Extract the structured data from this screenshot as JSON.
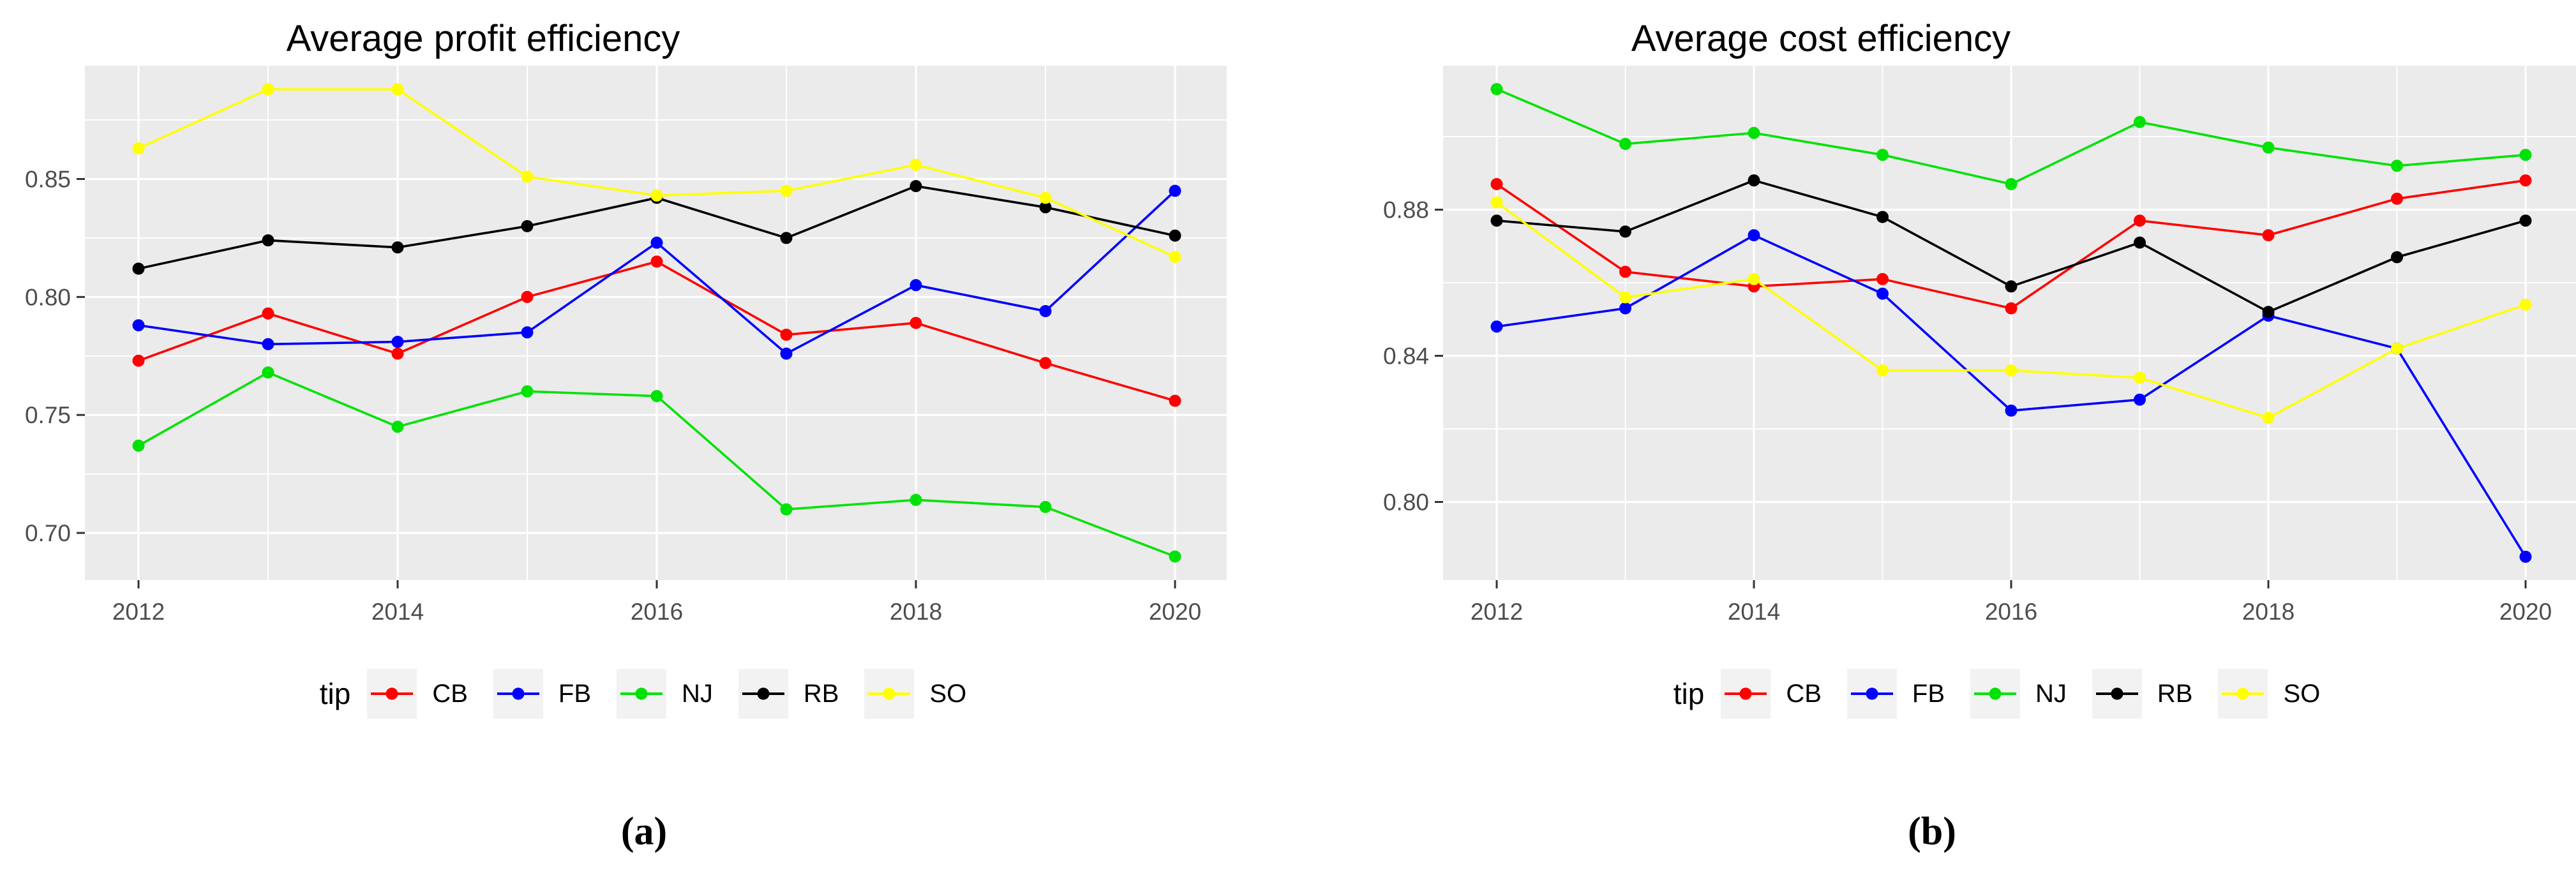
{
  "figure": {
    "background": "#ffffff",
    "captions": {
      "a": "(a)",
      "b": "(b)"
    }
  },
  "theme": {
    "panel_fill": "#EBEBEB",
    "grid_color": "#FFFFFF",
    "axis_text_color": "#4D4D4D",
    "tick_color": "#333333",
    "title_color": "#000000"
  },
  "legend": {
    "title": "tip",
    "position": "bottom",
    "key_fill": "#F2F2F2",
    "items": [
      {
        "label": "CB",
        "color": "#FF0000"
      },
      {
        "label": "FB",
        "color": "#0000FF"
      },
      {
        "label": "NJ",
        "color": "#00E205"
      },
      {
        "label": "RB",
        "color": "#000000"
      },
      {
        "label": "SO",
        "color": "#FFFF00"
      }
    ]
  },
  "chart_data": [
    {
      "type": "line",
      "title": "Average profit efficiency",
      "xlabel": "",
      "ylabel": "",
      "x": [
        2012,
        2013,
        2014,
        2015,
        2016,
        2017,
        2018,
        2019,
        2020
      ],
      "x_ticks_major": [
        2012,
        2014,
        2016,
        2018,
        2020
      ],
      "x_tick_labels": [
        "2012",
        "2014",
        "2016",
        "2018",
        "2020"
      ],
      "x_minor": [
        2013,
        2015,
        2017,
        2019
      ],
      "ylim": [
        0.68,
        0.898
      ],
      "y_ticks_major": [
        {
          "value": 0.85,
          "label": "0.85"
        },
        {
          "value": 0.8,
          "label": "0.80"
        },
        {
          "value": 0.75,
          "label": "0.75"
        },
        {
          "value": 0.7,
          "label": "0.70"
        }
      ],
      "y_minor": [
        0.875,
        0.825,
        0.775,
        0.725
      ],
      "grid": true,
      "legend_position": "bottom",
      "series": [
        {
          "name": "CB",
          "color": "#FF0000",
          "values": [
            0.773,
            0.793,
            0.776,
            0.8,
            0.815,
            0.784,
            0.789,
            0.772,
            0.756
          ]
        },
        {
          "name": "FB",
          "color": "#0000FF",
          "values": [
            0.788,
            0.78,
            0.781,
            0.785,
            0.823,
            0.776,
            0.805,
            0.794,
            0.845
          ]
        },
        {
          "name": "NJ",
          "color": "#00E205",
          "values": [
            0.737,
            0.768,
            0.745,
            0.76,
            0.758,
            0.71,
            0.714,
            0.711,
            0.69
          ]
        },
        {
          "name": "RB",
          "color": "#000000",
          "values": [
            0.812,
            0.824,
            0.821,
            0.83,
            0.842,
            0.825,
            0.847,
            0.838,
            0.826
          ]
        },
        {
          "name": "SO",
          "color": "#FFFF00",
          "values": [
            0.863,
            0.888,
            0.888,
            0.851,
            0.843,
            0.845,
            0.856,
            0.842,
            0.817
          ]
        }
      ]
    },
    {
      "type": "line",
      "title": "Average cost efficiency",
      "xlabel": "",
      "ylabel": "",
      "x": [
        2012,
        2013,
        2014,
        2015,
        2016,
        2017,
        2018,
        2019,
        2020
      ],
      "x_ticks_major": [
        2012,
        2014,
        2016,
        2018,
        2020
      ],
      "x_tick_labels": [
        "2012",
        "2014",
        "2016",
        "2018",
        "2020"
      ],
      "x_minor": [
        2013,
        2015,
        2017,
        2019
      ],
      "ylim": [
        0.7786,
        0.9194
      ],
      "y_ticks_major": [
        {
          "value": 0.88,
          "label": "0.88"
        },
        {
          "value": 0.84,
          "label": "0.84"
        },
        {
          "value": 0.8,
          "label": "0.80"
        }
      ],
      "y_minor": [
        0.9,
        0.86,
        0.82
      ],
      "grid": true,
      "legend_position": "bottom",
      "series": [
        {
          "name": "CB",
          "color": "#FF0000",
          "values": [
            0.887,
            0.863,
            0.859,
            0.861,
            0.853,
            0.877,
            0.873,
            0.883,
            0.888
          ]
        },
        {
          "name": "FB",
          "color": "#0000FF",
          "values": [
            0.848,
            0.853,
            0.873,
            0.857,
            0.825,
            0.828,
            0.851,
            0.842,
            0.785
          ]
        },
        {
          "name": "NJ",
          "color": "#00E205",
          "values": [
            0.913,
            0.898,
            0.901,
            0.895,
            0.887,
            0.904,
            0.897,
            0.892,
            0.895
          ]
        },
        {
          "name": "RB",
          "color": "#000000",
          "values": [
            0.877,
            0.874,
            0.888,
            0.878,
            0.859,
            0.871,
            0.852,
            0.867,
            0.877
          ]
        },
        {
          "name": "SO",
          "color": "#FFFF00",
          "values": [
            0.882,
            0.856,
            0.861,
            0.836,
            0.836,
            0.834,
            0.823,
            0.842,
            0.854
          ]
        }
      ]
    }
  ]
}
